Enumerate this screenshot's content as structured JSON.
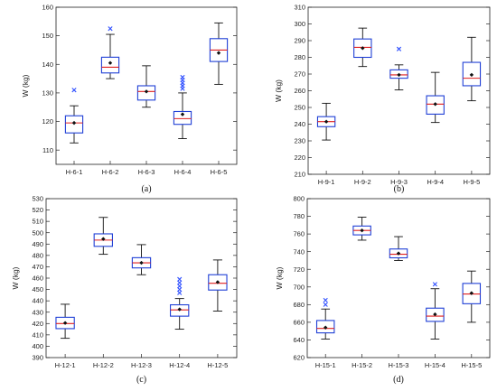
{
  "colors": {
    "box": "#1f3fd6",
    "median": "#e02020",
    "mean": "#111111",
    "whisker": "#111111",
    "outlier": "#3050ff"
  },
  "chart_data": [
    {
      "type": "box",
      "panel_label": "(a)",
      "ylabel": "W (kg)",
      "ylim": [
        105,
        160
      ],
      "yticks": [
        110,
        120,
        130,
        140,
        150,
        160
      ],
      "categories": [
        "H-6-1",
        "H-6-2",
        "H-6-3",
        "H-6-4",
        "H-6-5"
      ],
      "boxes": [
        {
          "whisker_low": 112.5,
          "q1": 116,
          "median": 119.5,
          "q3": 122,
          "whisker_high": 125.5,
          "mean": 119.5,
          "outliers": [
            131
          ]
        },
        {
          "whisker_low": 135,
          "q1": 137,
          "median": 139,
          "q3": 142.5,
          "whisker_high": 150.5,
          "mean": 140.5,
          "outliers": [
            152.5
          ]
        },
        {
          "whisker_low": 125,
          "q1": 127.5,
          "median": 130.5,
          "q3": 132.5,
          "whisker_high": 139.5,
          "mean": 130.5,
          "outliers": []
        },
        {
          "whisker_low": 114,
          "q1": 119,
          "median": 121,
          "q3": 123.5,
          "whisker_high": 130,
          "mean": 122.5,
          "outliers": [
            131.5,
            132.5,
            133.5,
            134.5,
            135.5
          ]
        },
        {
          "whisker_low": 133,
          "q1": 141,
          "median": 145,
          "q3": 149,
          "whisker_high": 154.5,
          "mean": 144,
          "outliers": []
        }
      ]
    },
    {
      "type": "box",
      "panel_label": "(b)",
      "ylabel": "W (kg)",
      "ylim": [
        210,
        310
      ],
      "yticks": [
        210,
        220,
        230,
        240,
        250,
        260,
        270,
        280,
        290,
        300,
        310
      ],
      "categories": [
        "H-9-1",
        "H-9-2",
        "H-9-3",
        "H-9-4",
        "H-9-5"
      ],
      "boxes": [
        {
          "whisker_low": 230.5,
          "q1": 238.5,
          "median": 241.5,
          "q3": 244.5,
          "whisker_high": 252.5,
          "mean": 241.5,
          "outliers": []
        },
        {
          "whisker_low": 274.5,
          "q1": 280,
          "median": 286,
          "q3": 291,
          "whisker_high": 297.5,
          "mean": 285.5,
          "outliers": []
        },
        {
          "whisker_low": 260.5,
          "q1": 267.5,
          "median": 269.5,
          "q3": 272.5,
          "whisker_high": 275.5,
          "mean": 269.5,
          "outliers": [
            285
          ]
        },
        {
          "whisker_low": 241,
          "q1": 246,
          "median": 252,
          "q3": 257,
          "whisker_high": 271,
          "mean": 252,
          "outliers": []
        },
        {
          "whisker_low": 254,
          "q1": 263,
          "median": 267.5,
          "q3": 277,
          "whisker_high": 292,
          "mean": 269.5,
          "outliers": []
        }
      ]
    },
    {
      "type": "box",
      "panel_label": "(c)",
      "ylabel": "W (kg)",
      "ylim": [
        390,
        530
      ],
      "yticks": [
        390,
        400,
        410,
        420,
        430,
        440,
        450,
        460,
        470,
        480,
        490,
        500,
        510,
        520,
        530
      ],
      "categories": [
        "H-12-1",
        "H-12-2",
        "H-12-3",
        "H-12-4",
        "H-12-5"
      ],
      "boxes": [
        {
          "whisker_low": 407,
          "q1": 415.5,
          "median": 420,
          "q3": 425.5,
          "whisker_high": 437,
          "mean": 420.5,
          "outliers": []
        },
        {
          "whisker_low": 481,
          "q1": 488,
          "median": 493.5,
          "q3": 499,
          "whisker_high": 513.5,
          "mean": 494.5,
          "outliers": []
        },
        {
          "whisker_low": 463,
          "q1": 469,
          "median": 473.5,
          "q3": 478,
          "whisker_high": 489.5,
          "mean": 473.5,
          "outliers": []
        },
        {
          "whisker_low": 415,
          "q1": 426.5,
          "median": 432,
          "q3": 436.5,
          "whisker_high": 442,
          "mean": 432.5,
          "outliers": [
            447,
            450,
            453,
            456,
            459
          ]
        },
        {
          "whisker_low": 431,
          "q1": 449.5,
          "median": 455.5,
          "q3": 463,
          "whisker_high": 476,
          "mean": 456.5,
          "outliers": []
        }
      ]
    },
    {
      "type": "box",
      "panel_label": "(d)",
      "ylabel": "W (kg)",
      "ylim": [
        620,
        800
      ],
      "yticks": [
        620,
        640,
        660,
        680,
        700,
        720,
        740,
        760,
        780,
        800
      ],
      "categories": [
        "H-15-1",
        "H-15-2",
        "H-15-3",
        "H-15-4",
        "H-15-5"
      ],
      "boxes": [
        {
          "whisker_low": 641,
          "q1": 648,
          "median": 653,
          "q3": 662,
          "whisker_high": 675,
          "mean": 654,
          "outliers": [
            680,
            685
          ]
        },
        {
          "whisker_low": 753,
          "q1": 759,
          "median": 764,
          "q3": 769,
          "whisker_high": 779,
          "mean": 764,
          "outliers": []
        },
        {
          "whisker_low": 730,
          "q1": 733,
          "median": 737,
          "q3": 743,
          "whisker_high": 757,
          "mean": 738,
          "outliers": []
        },
        {
          "whisker_low": 641,
          "q1": 661,
          "median": 667,
          "q3": 676,
          "whisker_high": 698,
          "mean": 669,
          "outliers": [
            703
          ]
        },
        {
          "whisker_low": 660,
          "q1": 681,
          "median": 692,
          "q3": 704,
          "whisker_high": 718,
          "mean": 693,
          "outliers": []
        }
      ]
    }
  ]
}
